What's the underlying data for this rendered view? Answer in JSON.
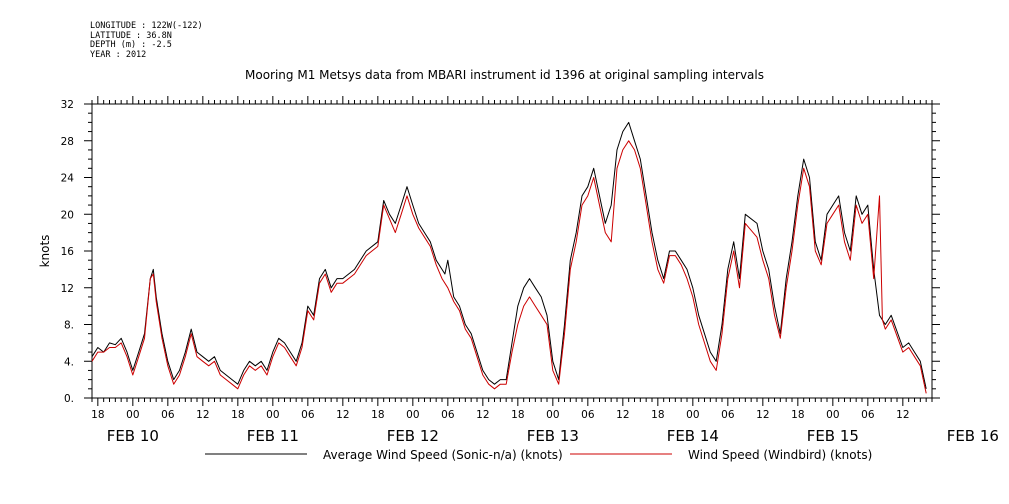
{
  "header": {
    "longitude": "LONGITUDE : 122W(-122)",
    "latitude": "LATITUDE : 36.8N",
    "depth": "DEPTH (m) : -2.5",
    "year": "YEAR : 2012"
  },
  "chart_data": {
    "type": "line",
    "title": "Mooring M1 Metsys data from MBARI instrument id 1396 at original sampling intervals",
    "ylabel": "knots",
    "xlabel": "",
    "ylim": [
      0,
      32
    ],
    "yticks": [
      "0.",
      "4.",
      "8.",
      "12",
      "16",
      "20",
      "24",
      "28",
      "32"
    ],
    "x_unit": "hours since FEB 10 00:00",
    "xlim": [
      -7,
      137
    ],
    "hour_tick_labels": [
      "00",
      "06",
      "12",
      "18"
    ],
    "day_labels": [
      "FEB 10",
      "FEB 11",
      "FEB 12",
      "FEB 13",
      "FEB 14",
      "FEB 15",
      "FEB 16"
    ],
    "grid": false,
    "legend_position": "bottom",
    "series": [
      {
        "name": "Average Wind Speed (Sonic-n/a) (knots)",
        "color": "#000000",
        "points": [
          [
            -7,
            4.5
          ],
          [
            -6,
            5.5
          ],
          [
            -5,
            5
          ],
          [
            -4,
            6
          ],
          [
            -3,
            5.8
          ],
          [
            -2,
            6.5
          ],
          [
            -1,
            5
          ],
          [
            0,
            3
          ],
          [
            1,
            5
          ],
          [
            2,
            7
          ],
          [
            3,
            13
          ],
          [
            3.5,
            14
          ],
          [
            4,
            11
          ],
          [
            5,
            7
          ],
          [
            6,
            4
          ],
          [
            7,
            2
          ],
          [
            8,
            3
          ],
          [
            9,
            5
          ],
          [
            10,
            7.5
          ],
          [
            11,
            5
          ],
          [
            12,
            4.5
          ],
          [
            13,
            4
          ],
          [
            14,
            4.5
          ],
          [
            15,
            3
          ],
          [
            17,
            2
          ],
          [
            18,
            1.5
          ],
          [
            19,
            3
          ],
          [
            20,
            4
          ],
          [
            21,
            3.5
          ],
          [
            22,
            4
          ],
          [
            23,
            3
          ],
          [
            24,
            5
          ],
          [
            25,
            6.5
          ],
          [
            26,
            6
          ],
          [
            27,
            5
          ],
          [
            28,
            4
          ],
          [
            29,
            6
          ],
          [
            30,
            10
          ],
          [
            31,
            9
          ],
          [
            32,
            13
          ],
          [
            33,
            14
          ],
          [
            34,
            12
          ],
          [
            35,
            13
          ],
          [
            36,
            13
          ],
          [
            38,
            14
          ],
          [
            40,
            16
          ],
          [
            42,
            17
          ],
          [
            43,
            21.5
          ],
          [
            44,
            20
          ],
          [
            45,
            19
          ],
          [
            46,
            21
          ],
          [
            47,
            23
          ],
          [
            48,
            21
          ],
          [
            49,
            19
          ],
          [
            50,
            18
          ],
          [
            51,
            17
          ],
          [
            52,
            15
          ],
          [
            53,
            14
          ],
          [
            53.5,
            13.5
          ],
          [
            54,
            15
          ],
          [
            55,
            11
          ],
          [
            56,
            10
          ],
          [
            57,
            8
          ],
          [
            58,
            7
          ],
          [
            59,
            5
          ],
          [
            60,
            3
          ],
          [
            61,
            2
          ],
          [
            62,
            1.5
          ],
          [
            63,
            2
          ],
          [
            64,
            2
          ],
          [
            65,
            6
          ],
          [
            66,
            10
          ],
          [
            67,
            12
          ],
          [
            68,
            13
          ],
          [
            69,
            12
          ],
          [
            70,
            11
          ],
          [
            71,
            9
          ],
          [
            72,
            4
          ],
          [
            73,
            2
          ],
          [
            74,
            8
          ],
          [
            75,
            15
          ],
          [
            76,
            18
          ],
          [
            77,
            22
          ],
          [
            78,
            23
          ],
          [
            79,
            25
          ],
          [
            80,
            22
          ],
          [
            81,
            19
          ],
          [
            82,
            21
          ],
          [
            83,
            27
          ],
          [
            84,
            29
          ],
          [
            85,
            30
          ],
          [
            86,
            28
          ],
          [
            87,
            26
          ],
          [
            88,
            22
          ],
          [
            89,
            18
          ],
          [
            90,
            15
          ],
          [
            91,
            13
          ],
          [
            92,
            16
          ],
          [
            93,
            16
          ],
          [
            94,
            15
          ],
          [
            95,
            14
          ],
          [
            96,
            12
          ],
          [
            97,
            9
          ],
          [
            98,
            7
          ],
          [
            99,
            5
          ],
          [
            100,
            4
          ],
          [
            101,
            8
          ],
          [
            102,
            14
          ],
          [
            103,
            17
          ],
          [
            104,
            13
          ],
          [
            105,
            20
          ],
          [
            107,
            19
          ],
          [
            108,
            16
          ],
          [
            109,
            14
          ],
          [
            110,
            10
          ],
          [
            111,
            7
          ],
          [
            112,
            13
          ],
          [
            113,
            17
          ],
          [
            114,
            22
          ],
          [
            115,
            26
          ],
          [
            116,
            24
          ],
          [
            117,
            17
          ],
          [
            118,
            15
          ],
          [
            119,
            20
          ],
          [
            120,
            21
          ],
          [
            121,
            22
          ],
          [
            122,
            18
          ],
          [
            123,
            16
          ],
          [
            124,
            22
          ],
          [
            125,
            20
          ],
          [
            126,
            21
          ],
          [
            127,
            14
          ],
          [
            128,
            9
          ],
          [
            129,
            8
          ],
          [
            130,
            9
          ],
          [
            132,
            5.5
          ],
          [
            133,
            6
          ],
          [
            134,
            5
          ],
          [
            135,
            4
          ],
          [
            136,
            1
          ]
        ]
      },
      {
        "name": "Wind Speed (Windbird) (knots)",
        "color": "#cc0000",
        "points": [
          [
            -7,
            4
          ],
          [
            -6,
            5
          ],
          [
            -5,
            5
          ],
          [
            -4,
            5.5
          ],
          [
            -3,
            5.5
          ],
          [
            -2,
            6
          ],
          [
            -1,
            4.5
          ],
          [
            0,
            2.5
          ],
          [
            1,
            4.5
          ],
          [
            2,
            6.5
          ],
          [
            3,
            13
          ],
          [
            3.5,
            13.5
          ],
          [
            4,
            10.5
          ],
          [
            5,
            6.5
          ],
          [
            6,
            3.5
          ],
          [
            7,
            1.5
          ],
          [
            8,
            2.5
          ],
          [
            9,
            4.5
          ],
          [
            10,
            7
          ],
          [
            11,
            4.5
          ],
          [
            12,
            4
          ],
          [
            13,
            3.5
          ],
          [
            14,
            4
          ],
          [
            15,
            2.5
          ],
          [
            17,
            1.5
          ],
          [
            18,
            1
          ],
          [
            19,
            2.5
          ],
          [
            20,
            3.5
          ],
          [
            21,
            3
          ],
          [
            22,
            3.5
          ],
          [
            23,
            2.5
          ],
          [
            24,
            4.5
          ],
          [
            25,
            6
          ],
          [
            26,
            5.5
          ],
          [
            27,
            4.5
          ],
          [
            28,
            3.5
          ],
          [
            29,
            5.5
          ],
          [
            30,
            9.5
          ],
          [
            31,
            8.5
          ],
          [
            32,
            12.5
          ],
          [
            33,
            13.5
          ],
          [
            34,
            11.5
          ],
          [
            35,
            12.5
          ],
          [
            36,
            12.5
          ],
          [
            38,
            13.5
          ],
          [
            40,
            15.5
          ],
          [
            42,
            16.5
          ],
          [
            43,
            21
          ],
          [
            44,
            19.5
          ],
          [
            45,
            18
          ],
          [
            46,
            20
          ],
          [
            47,
            22
          ],
          [
            48,
            20
          ],
          [
            49,
            18.5
          ],
          [
            50,
            17.5
          ],
          [
            51,
            16.5
          ],
          [
            52,
            14.5
          ],
          [
            53,
            13
          ],
          [
            54,
            12
          ],
          [
            55,
            10.5
          ],
          [
            56,
            9.5
          ],
          [
            57,
            7.5
          ],
          [
            58,
            6.5
          ],
          [
            59,
            4.5
          ],
          [
            60,
            2.5
          ],
          [
            61,
            1.5
          ],
          [
            62,
            1
          ],
          [
            63,
            1.5
          ],
          [
            64,
            1.5
          ],
          [
            65,
            5
          ],
          [
            66,
            8
          ],
          [
            67,
            10
          ],
          [
            68,
            11
          ],
          [
            69,
            10
          ],
          [
            70,
            9
          ],
          [
            71,
            8
          ],
          [
            72,
            3
          ],
          [
            73,
            1.5
          ],
          [
            74,
            7
          ],
          [
            75,
            14
          ],
          [
            76,
            17
          ],
          [
            77,
            21
          ],
          [
            78,
            22
          ],
          [
            79,
            24
          ],
          [
            80,
            21
          ],
          [
            81,
            18
          ],
          [
            82,
            17
          ],
          [
            83,
            25
          ],
          [
            84,
            27
          ],
          [
            85,
            28
          ],
          [
            86,
            27
          ],
          [
            87,
            25
          ],
          [
            88,
            21
          ],
          [
            89,
            17
          ],
          [
            90,
            14
          ],
          [
            91,
            12.5
          ],
          [
            92,
            15.5
          ],
          [
            93,
            15.5
          ],
          [
            94,
            14.5
          ],
          [
            95,
            13
          ],
          [
            96,
            11
          ],
          [
            97,
            8
          ],
          [
            98,
            6
          ],
          [
            99,
            4
          ],
          [
            100,
            3
          ],
          [
            101,
            7
          ],
          [
            102,
            13
          ],
          [
            103,
            16
          ],
          [
            104,
            12
          ],
          [
            105,
            19
          ],
          [
            107,
            17.5
          ],
          [
            108,
            15
          ],
          [
            109,
            13
          ],
          [
            110,
            9
          ],
          [
            111,
            6.5
          ],
          [
            112,
            12
          ],
          [
            113,
            16
          ],
          [
            114,
            21
          ],
          [
            115,
            25
          ],
          [
            116,
            23
          ],
          [
            117,
            16
          ],
          [
            118,
            14.5
          ],
          [
            119,
            19
          ],
          [
            120,
            20
          ],
          [
            121,
            21
          ],
          [
            122,
            17
          ],
          [
            123,
            15
          ],
          [
            124,
            21
          ],
          [
            125,
            19
          ],
          [
            126,
            20
          ],
          [
            127,
            13
          ],
          [
            128,
            22
          ],
          [
            128.5,
            8.5
          ],
          [
            129,
            7.5
          ],
          [
            130,
            8.5
          ],
          [
            132,
            5
          ],
          [
            133,
            5.5
          ],
          [
            134,
            4.5
          ],
          [
            135,
            3.5
          ],
          [
            136,
            0.5
          ]
        ]
      }
    ]
  }
}
